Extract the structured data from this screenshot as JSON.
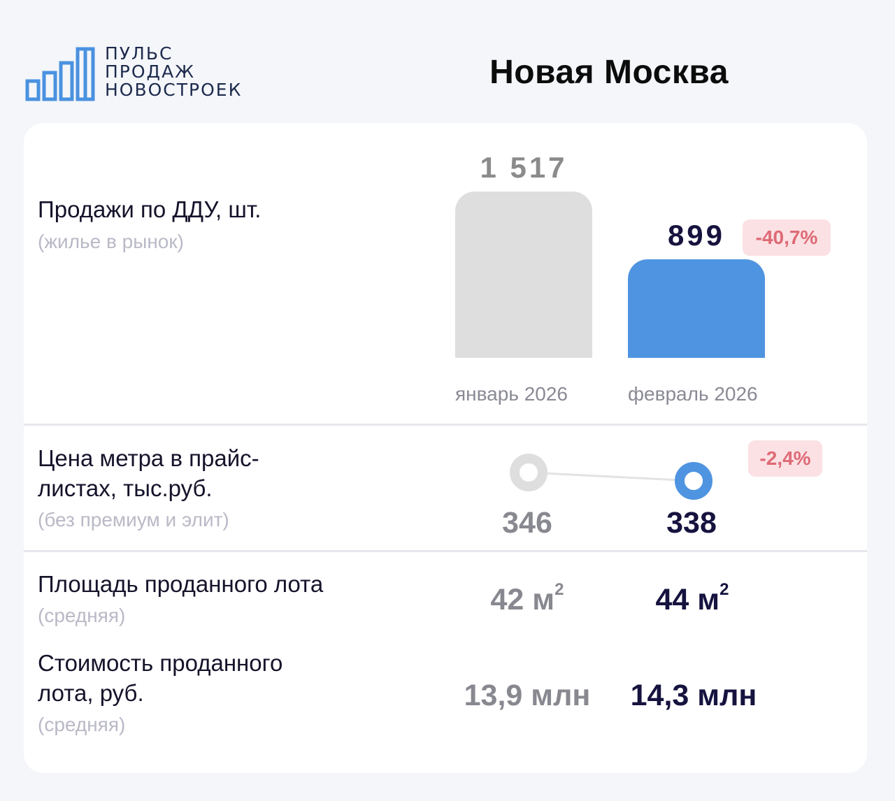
{
  "logo": {
    "lines": [
      "ПУЛЬС",
      "ПРОДАЖ",
      "НОВОСТРОЕК"
    ],
    "icon": "bar-chart-logo-icon",
    "color": "#4a92e0"
  },
  "region": "Новая Москва",
  "sales": {
    "label": "Продажи по ДДУ, шт.",
    "sublabel": "(жилье в рынок)",
    "change": "-40,7%"
  },
  "price": {
    "label_line1": "Цена метра в прайс-",
    "label_line2": "листах, тыс.руб.",
    "sublabel": "(без премиум и элит)",
    "change": "-2,4%",
    "old_value": "346",
    "new_value": "338"
  },
  "area": {
    "label": "Площадь проданного лота",
    "sublabel": "(средняя)",
    "old_value": "42 м",
    "new_value": "44 м",
    "unit_sup": "2"
  },
  "cost": {
    "label_line1": "Стоимость проданного",
    "label_line2": "лота, руб.",
    "sublabel": "(средняя)",
    "old_value": "13,9 млн",
    "new_value": "14,3 млн"
  },
  "colors": {
    "old": "#dedede",
    "new": "#4f94e1",
    "badge_bg": "#fbe1e4",
    "badge_text": "#de6a76"
  },
  "chart_data": [
    {
      "type": "bar",
      "categories": [
        "январь 2026",
        "февраль 2026"
      ],
      "values": [
        1517,
        899
      ],
      "value_labels": [
        "1 517",
        "899"
      ],
      "title": "Продажи по ДДУ, шт.",
      "ylim": [
        0,
        1517
      ],
      "grid": false
    },
    {
      "type": "line",
      "categories": [
        "январь 2026",
        "февраль 2026"
      ],
      "values": [
        346,
        338
      ],
      "title": "Цена метра в прайс-листах, тыс.руб.",
      "grid": false
    }
  ]
}
